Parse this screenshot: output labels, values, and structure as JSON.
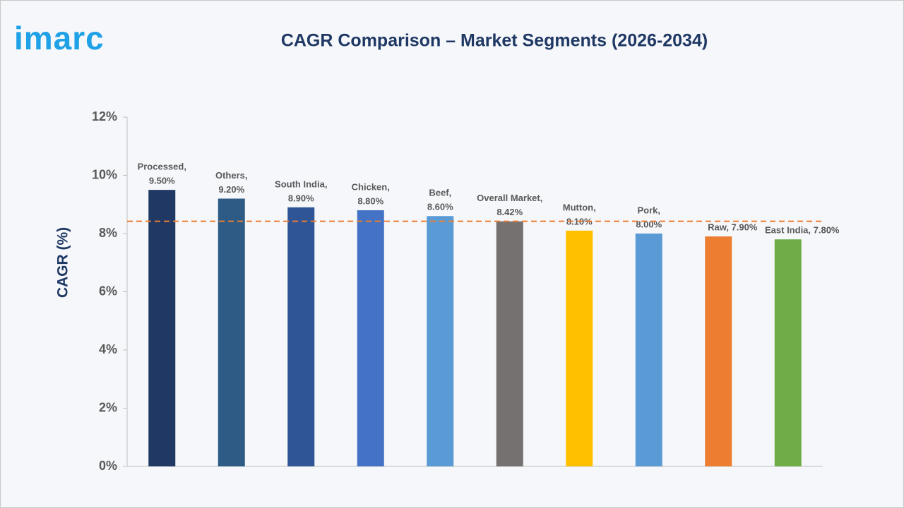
{
  "chart_data": {
    "type": "bar",
    "logo": "imarc",
    "title": "CAGR Comparison – Market Segments (2026-2034)",
    "ylabel": "CAGR (%)",
    "categories": [
      "Processed",
      "Others",
      "South India",
      "Chicken",
      "Beef",
      "Overall Market",
      "Mutton",
      "Pork",
      "Raw",
      "East India"
    ],
    "values": [
      9.5,
      9.2,
      8.9,
      8.8,
      8.6,
      8.42,
      8.1,
      8.0,
      7.9,
      7.8
    ],
    "value_labels": [
      [
        "Processed,",
        "9.50%"
      ],
      [
        "Others,",
        "9.20%"
      ],
      [
        "South India,",
        "8.90%"
      ],
      [
        "Chicken,",
        "8.80%"
      ],
      [
        "Beef,",
        "8.60%"
      ],
      [
        "Overall Market,",
        "8.42%"
      ],
      [
        "Mutton,",
        "8.10%"
      ],
      [
        "Pork,",
        "8.00%"
      ],
      [
        "Raw, 7.90%"
      ],
      [
        "East India, 7.80%"
      ]
    ],
    "colors": [
      "#1f3864",
      "#2e5b86",
      "#2f5597",
      "#4472c4",
      "#5b9bd5",
      "#767171",
      "#ffc000",
      "#5b9bd5",
      "#ed7d31",
      "#70ad47"
    ],
    "ylim": [
      0,
      12
    ],
    "yticks": [
      {
        "value": 0,
        "label": "0%"
      },
      {
        "value": 2,
        "label": "2%"
      },
      {
        "value": 4,
        "label": "4%"
      },
      {
        "value": 6,
        "label": "6%"
      },
      {
        "value": 8,
        "label": "8%"
      },
      {
        "value": 10,
        "label": "10%"
      },
      {
        "value": 12,
        "label": "12%"
      }
    ],
    "reference_line_color": "#ed7d31"
  }
}
